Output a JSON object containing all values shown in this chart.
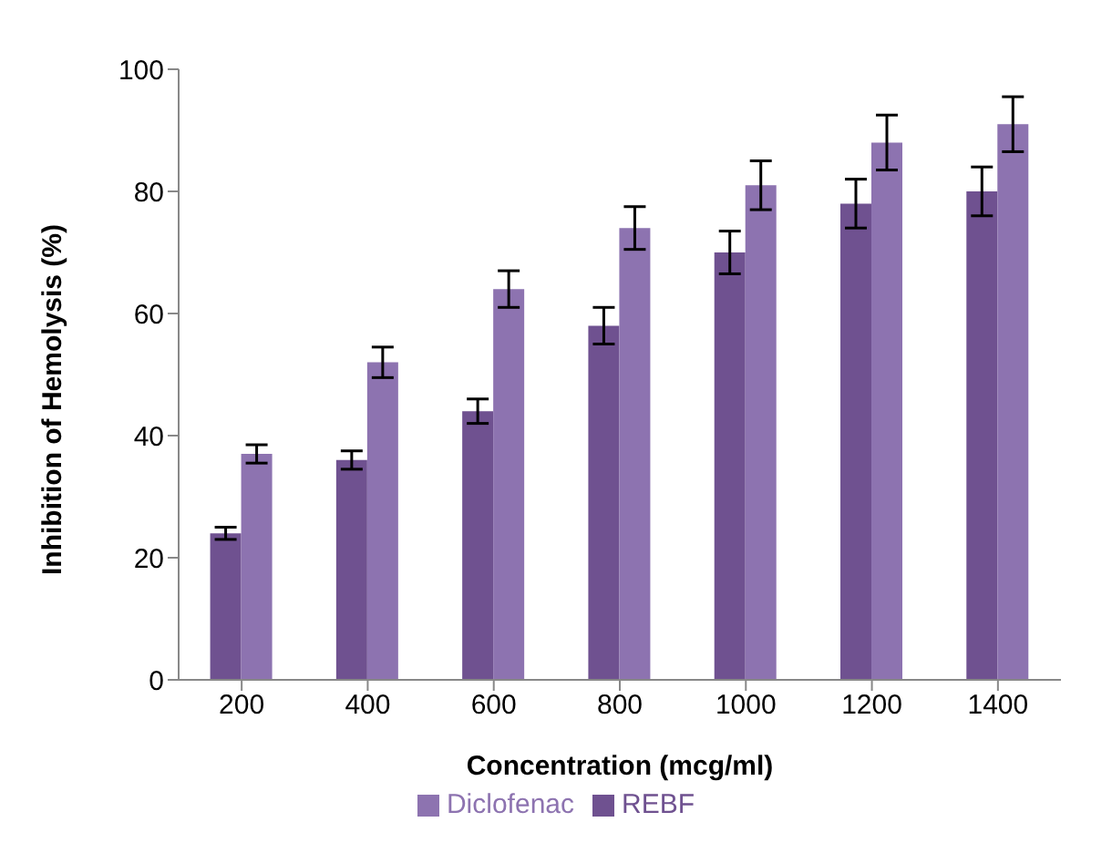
{
  "chart_data": {
    "type": "bar",
    "xlabel": "Concentration (mcg/ml)",
    "ylabel": "Inhibition of Hemolysis (%)",
    "categories": [
      "200",
      "400",
      "600",
      "800",
      "1000",
      "1200",
      "1400"
    ],
    "series": [
      {
        "name": "REBF",
        "color": "#6f5190",
        "values": [
          24,
          36,
          44,
          58,
          70,
          78,
          80
        ],
        "errors": [
          1,
          1.5,
          2,
          3,
          3.5,
          4,
          4
        ]
      },
      {
        "name": "Diclofenac",
        "color": "#8d73b0",
        "values": [
          37,
          52,
          64,
          74,
          81,
          88,
          91
        ],
        "errors": [
          1.5,
          2.5,
          3,
          3.5,
          4,
          4.5,
          4.5
        ]
      }
    ],
    "ylim": [
      0,
      100
    ],
    "yticks": [
      0,
      20,
      40,
      60,
      80,
      100
    ],
    "grid": false,
    "legend": "bottom"
  }
}
